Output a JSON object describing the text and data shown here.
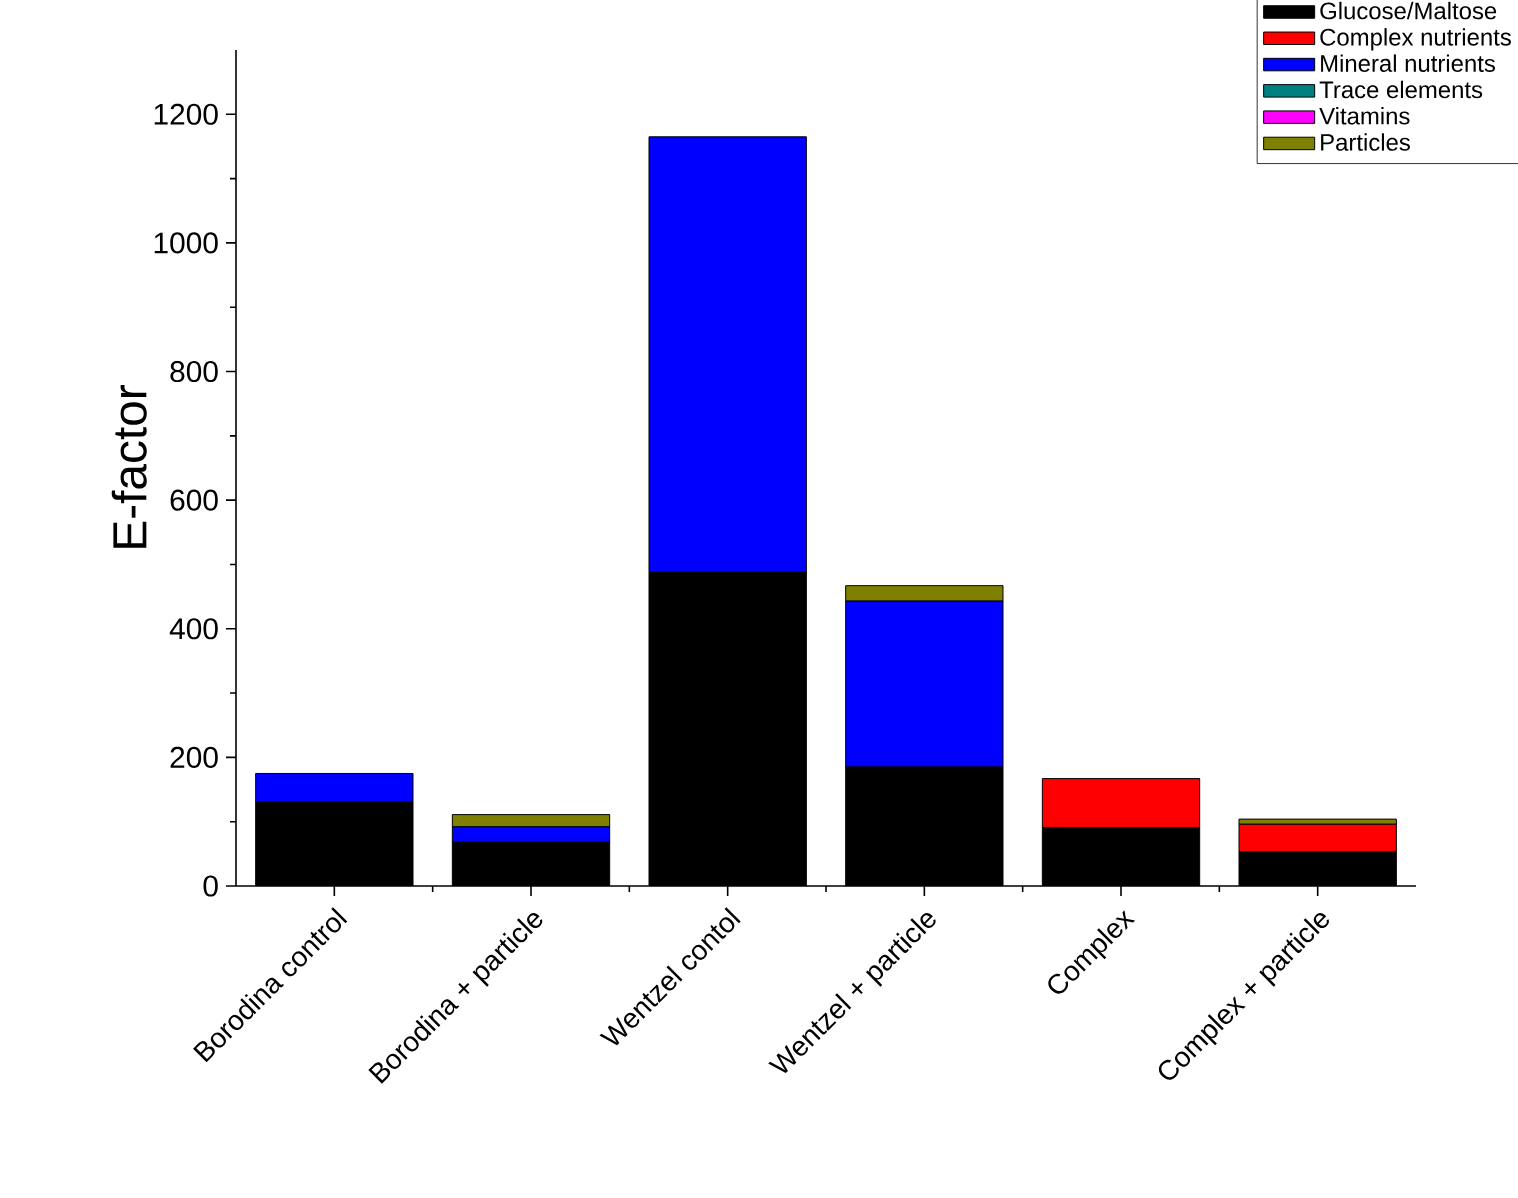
{
  "chart_data": {
    "type": "bar",
    "stacked": true,
    "ylabel": "E-factor",
    "categories": [
      "Borodina control",
      "Borodina + particle",
      "Wentzel contol",
      "Wentzel + particle",
      "Complex",
      "Complex + particle"
    ],
    "series": [
      {
        "name": "Glucose/Maltose",
        "color": "#000000",
        "values": [
          131,
          68,
          488,
          185,
          91,
          53
        ]
      },
      {
        "name": "Complex nutrients",
        "color": "#ff0000",
        "values": [
          0,
          0,
          0,
          0,
          76,
          43
        ]
      },
      {
        "name": "Mineral nutrients",
        "color": "#0000ff",
        "values": [
          44,
          24,
          677,
          258,
          0,
          0
        ]
      },
      {
        "name": "Trace elements",
        "color": "#008080",
        "values": [
          0,
          0,
          0,
          0,
          0,
          0
        ]
      },
      {
        "name": "Vitamins",
        "color": "#ff00ff",
        "values": [
          0,
          0,
          0,
          0,
          0,
          0
        ]
      },
      {
        "name": "Particles",
        "color": "#808000",
        "values": [
          0,
          19,
          0,
          24,
          0,
          8
        ]
      }
    ],
    "ylim": [
      0,
      1300
    ],
    "yticks": [
      0,
      200,
      400,
      600,
      800,
      1000,
      1200
    ],
    "legend": "top right",
    "grid": false
  }
}
